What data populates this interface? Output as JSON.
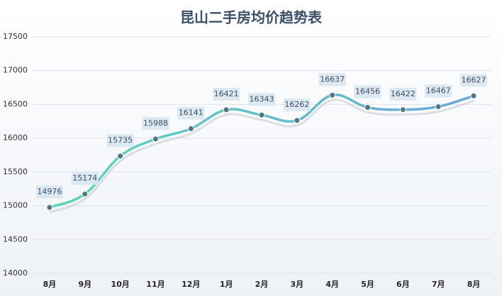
{
  "chart_data": {
    "type": "line",
    "title": "昆山二手房均价趋势表",
    "categories": [
      "8月",
      "9月",
      "10月",
      "11月",
      "12月",
      "1月",
      "2月",
      "3月",
      "4月",
      "5月",
      "6月",
      "7月",
      "8月"
    ],
    "values": [
      14976,
      15174,
      15735,
      15988,
      16141,
      16421,
      16343,
      16262,
      16637,
      16456,
      16422,
      16467,
      16627
    ],
    "color": "#5bc8c0",
    "ylim": [
      14000,
      17500
    ],
    "yticks": [
      14000,
      14500,
      15000,
      15500,
      16000,
      16500,
      17000,
      17500
    ],
    "grid": true
  }
}
